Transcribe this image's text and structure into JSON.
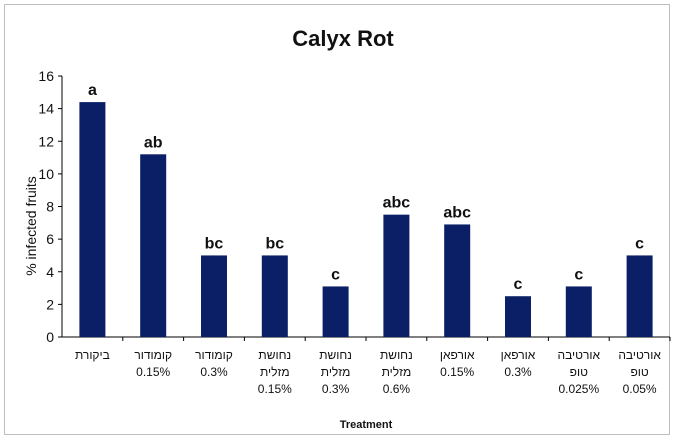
{
  "chart_data": {
    "type": "bar",
    "title": "Calyx Rot",
    "xlabel": "Treatment",
    "ylabel": "% infected fruits",
    "ylim": [
      0,
      16
    ],
    "yticks": [
      0,
      2,
      4,
      6,
      8,
      10,
      12,
      14,
      16
    ],
    "grid": false,
    "bar_color": "#0a1f66",
    "categories": [
      [
        "ביקורת"
      ],
      [
        "קומודור",
        "0.15%"
      ],
      [
        "קומודור",
        "0.3%"
      ],
      [
        "נחושת",
        "מזלית",
        "0.15%"
      ],
      [
        "נחושת",
        "מזלית",
        "0.3%"
      ],
      [
        "נחושת",
        "מזלית",
        "0.6%"
      ],
      [
        "אורפאן",
        "0.15%"
      ],
      [
        "אורפאן",
        "0.3%"
      ],
      [
        "אורטיבה",
        "טופ",
        "0.025%"
      ],
      [
        "אורטיבה",
        "טופ",
        "0.05%"
      ]
    ],
    "values": [
      14.4,
      11.2,
      5.0,
      5.0,
      3.1,
      7.5,
      6.9,
      2.5,
      3.1,
      5.0
    ],
    "data_labels": [
      "a",
      "ab",
      "bc",
      "bc",
      "c",
      "abc",
      "abc",
      "c",
      "c",
      "c"
    ]
  }
}
